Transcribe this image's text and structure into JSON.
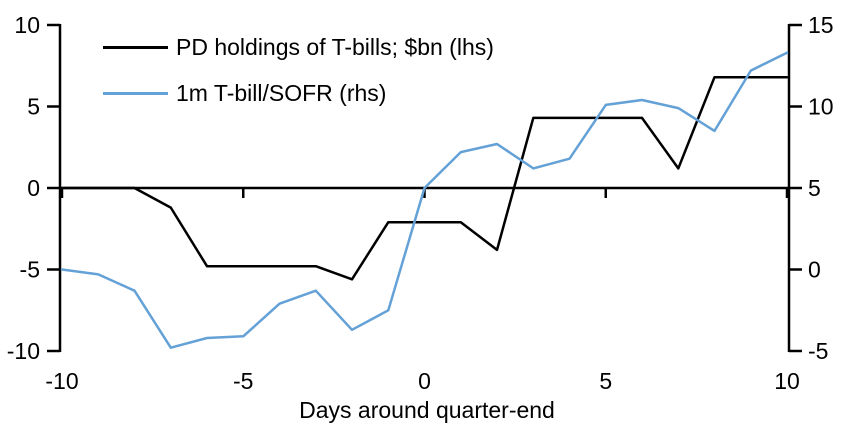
{
  "chart_data": {
    "type": "line",
    "title": "",
    "xlabel": "Days around quarter-end",
    "ylabel_left": "",
    "ylabel_right": "",
    "grid": false,
    "legend_position": "top-left",
    "x": [
      -10,
      -9,
      -8,
      -7,
      -6,
      -5,
      -4,
      -3,
      -2,
      -1,
      0,
      1,
      2,
      3,
      4,
      5,
      6,
      7,
      8,
      9,
      10
    ],
    "x_ticks": [
      -10,
      -5,
      0,
      5,
      10
    ],
    "left_axis": {
      "lim": [
        -10,
        10
      ],
      "ticks": [
        10,
        5,
        0,
        -5,
        -10
      ]
    },
    "right_axis": {
      "lim": [
        -5,
        15
      ],
      "ticks": [
        15,
        10,
        5,
        0,
        -5
      ]
    },
    "series": [
      {
        "key": "pd-holdings-line",
        "name": "PD holdings of T-bills; $bn (lhs)",
        "axis": "left",
        "color": "#000000",
        "values": [
          0,
          0,
          0,
          -1.2,
          -4.8,
          -4.8,
          -4.8,
          -4.8,
          -5.6,
          -2.1,
          -2.1,
          -2.1,
          -3.8,
          4.3,
          4.3,
          4.3,
          4.3,
          1.2,
          6.8,
          6.8,
          6.8
        ]
      },
      {
        "key": "tbill-sofr-line",
        "name": "1m T-bill/SOFR (rhs)",
        "axis": "right",
        "color": "#64A1D6",
        "values": [
          0,
          -0.3,
          -1.3,
          -4.8,
          -4.2,
          -4.1,
          -2.1,
          -1.3,
          -3.7,
          -2.5,
          5.0,
          7.2,
          7.7,
          6.2,
          6.8,
          10.1,
          10.4,
          9.9,
          8.5,
          12.2,
          13.3
        ]
      }
    ]
  },
  "colors": {
    "background": "#ffffff",
    "axis": "#000000",
    "text": "#000000"
  }
}
